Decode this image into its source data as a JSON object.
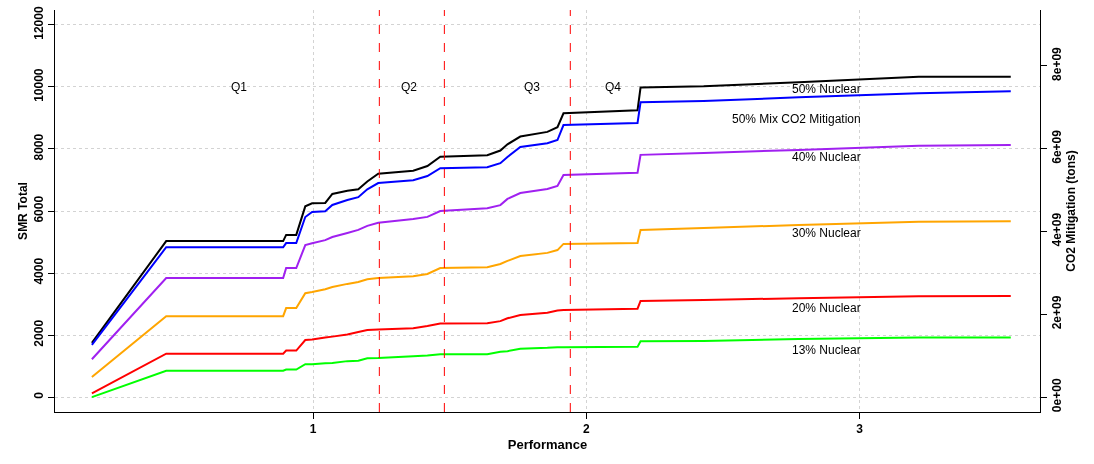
{
  "chart_data": {
    "type": "line",
    "xlabel": "Performance",
    "ylabel": "SMR Total",
    "y2label": "CO2 Mitigation (tons)",
    "x": [
      0.19,
      0.462,
      0.89,
      0.901,
      0.938,
      0.971,
      0.996,
      1.044,
      1.07,
      1.125,
      1.165,
      1.198,
      1.238,
      1.366,
      1.418,
      1.465,
      1.637,
      1.685,
      1.711,
      1.758,
      1.857,
      1.894,
      1.916,
      2.187,
      2.198,
      2.429,
      2.777,
      3.216,
      3.553
    ],
    "series": [
      {
        "name": "50% Nuclear",
        "color": "#000000",
        "values": [
          1750,
          5030,
          5030,
          5230,
          5230,
          6150,
          6250,
          6260,
          6550,
          6650,
          6700,
          6950,
          7200,
          7300,
          7450,
          7750,
          7800,
          7950,
          8150,
          8400,
          8550,
          8700,
          9150,
          9250,
          9980,
          10020,
          10150,
          10330,
          10330
        ]
      },
      {
        "name": "50% Mix CO2 Mitigation",
        "color": "#0000ff",
        "axis": "y2",
        "values": [
          1260000000,
          3620000000,
          3620000000,
          3720000000,
          3720000000,
          4350000000,
          4470000000,
          4490000000,
          4640000000,
          4760000000,
          4830000000,
          5020000000,
          5170000000,
          5240000000,
          5340000000,
          5530000000,
          5550000000,
          5650000000,
          5800000000,
          6040000000,
          6130000000,
          6210000000,
          6570000000,
          6620000000,
          7120000000,
          7150000000,
          7240000000,
          7340000000,
          7390000000
        ]
      },
      {
        "name": "40% Nuclear",
        "color": "#a020f0",
        "values": [
          1220,
          3840,
          3840,
          4160,
          4160,
          4900,
          4960,
          5060,
          5160,
          5290,
          5390,
          5520,
          5620,
          5740,
          5810,
          6000,
          6090,
          6190,
          6390,
          6580,
          6710,
          6810,
          7160,
          7230,
          7810,
          7870,
          7970,
          8100,
          8130
        ]
      },
      {
        "name": "30% Nuclear",
        "color": "#ffa500",
        "values": [
          650,
          2610,
          2610,
          2870,
          2870,
          3350,
          3390,
          3480,
          3550,
          3650,
          3710,
          3800,
          3840,
          3900,
          3970,
          4160,
          4190,
          4290,
          4390,
          4550,
          4650,
          4740,
          4940,
          4970,
          5390,
          5450,
          5550,
          5650,
          5670
        ]
      },
      {
        "name": "20% Nuclear",
        "color": "#ff0000",
        "values": [
          120,
          1400,
          1400,
          1500,
          1500,
          1840,
          1860,
          1920,
          1950,
          2020,
          2100,
          2160,
          2180,
          2220,
          2290,
          2370,
          2380,
          2450,
          2540,
          2650,
          2720,
          2790,
          2810,
          2850,
          3100,
          3130,
          3190,
          3250,
          3260
        ]
      },
      {
        "name": "13% Nuclear",
        "color": "#00ff00",
        "values": [
          0,
          850,
          850,
          890,
          890,
          1060,
          1060,
          1090,
          1100,
          1160,
          1170,
          1250,
          1260,
          1320,
          1340,
          1380,
          1380,
          1460,
          1480,
          1560,
          1590,
          1610,
          1610,
          1620,
          1800,
          1810,
          1870,
          1920,
          1920
        ]
      }
    ],
    "xlim": [
      0.055,
      3.66
    ],
    "xticks": [
      1,
      2,
      3
    ],
    "ylim": [
      -480,
      12480
    ],
    "yticks": [
      0,
      2000,
      4000,
      6000,
      8000,
      10000,
      12000
    ],
    "y2lim": [
      -360000000,
      9350000000
    ],
    "y2ticks": [
      {
        "value": 0,
        "label": "0e+00"
      },
      {
        "value": 2000000000,
        "label": "2e+09"
      },
      {
        "value": 4000000000,
        "label": "4e+09"
      },
      {
        "value": 6000000000,
        "label": "6e+09"
      },
      {
        "value": 8000000000,
        "label": "8e+09"
      }
    ],
    "ref_lines": [
      {
        "axis": "x",
        "value": 1.242,
        "color": "#ff0000",
        "line_style": "dashed"
      },
      {
        "axis": "x",
        "value": 1.48,
        "color": "#ff0000",
        "line_style": "dashed"
      },
      {
        "axis": "x",
        "value": 1.941,
        "color": "#ff0000",
        "line_style": "dashed"
      }
    ],
    "annotations": [
      "Q1",
      "Q2",
      "Q3",
      "Q4"
    ],
    "grid": true,
    "legend": false,
    "marker": "none",
    "line_style": "solid"
  }
}
